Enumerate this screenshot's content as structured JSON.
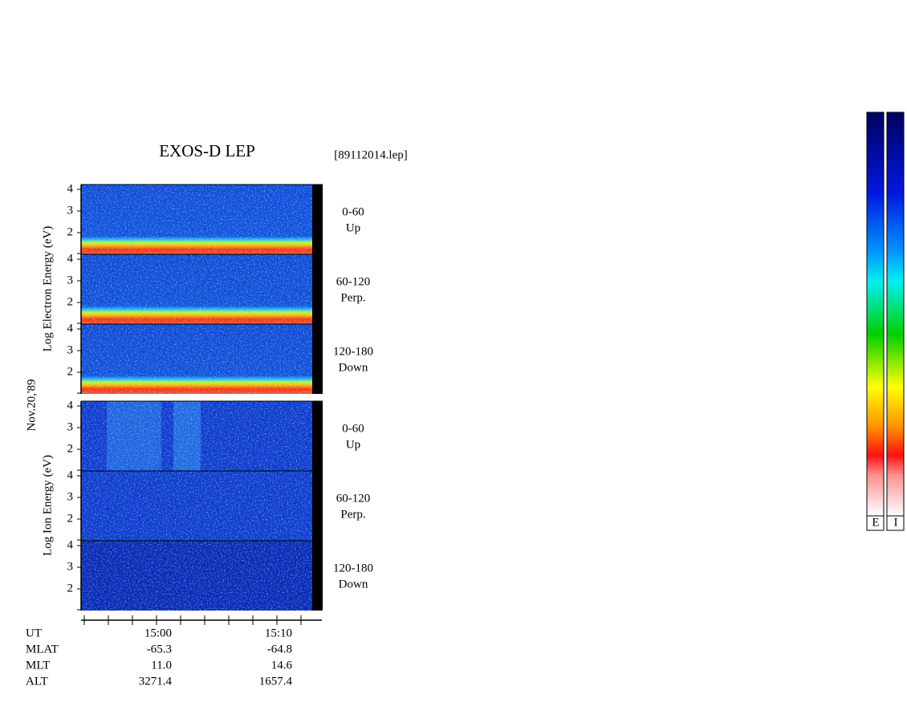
{
  "title": "EXOS-D LEP",
  "file": "[89112014.lep]",
  "date": "Nov.20,'89",
  "electron": {
    "axis_label": "Log Electron Energy (eV)",
    "panels": [
      {
        "range": "0-60",
        "direction": "Up"
      },
      {
        "range": "60-120",
        "direction": "Perp."
      },
      {
        "range": "120-180",
        "direction": "Down"
      }
    ]
  },
  "ion": {
    "axis_label": "Log Ion Energy (eV)",
    "panels": [
      {
        "range": "0-60",
        "direction": "Up"
      },
      {
        "range": "60-120",
        "direction": "Perp."
      },
      {
        "range": "120-180",
        "direction": "Down"
      }
    ]
  },
  "energy_ticks": [
    "4",
    "3",
    "2"
  ],
  "orbit": {
    "labels": [
      "UT",
      "MLAT",
      "MLT",
      "ALT"
    ],
    "columns": [
      [
        "15:00",
        "-65.3",
        "11.0",
        "3271.4"
      ],
      [
        "15:10",
        "-64.8",
        "14.6",
        "1657.4"
      ]
    ]
  },
  "colorbars": [
    "E",
    "I"
  ]
}
